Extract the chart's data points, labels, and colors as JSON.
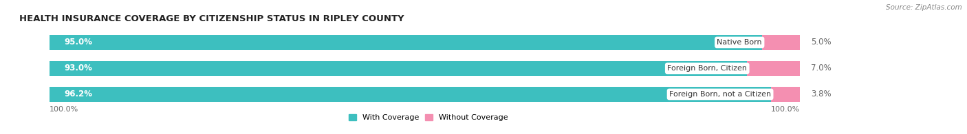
{
  "title": "HEALTH INSURANCE COVERAGE BY CITIZENSHIP STATUS IN RIPLEY COUNTY",
  "source": "Source: ZipAtlas.com",
  "categories": [
    "Native Born",
    "Foreign Born, Citizen",
    "Foreign Born, not a Citizen"
  ],
  "with_coverage": [
    95.0,
    93.0,
    96.2
  ],
  "without_coverage": [
    5.0,
    7.0,
    3.8
  ],
  "color_with": "#3dbfbf",
  "color_without": "#f48fb1",
  "bar_bg_color": "#e8e8e8",
  "label_left_100": "100.0%",
  "label_right_100": "100.0%",
  "legend_with": "With Coverage",
  "legend_without": "Without Coverage",
  "title_fontsize": 9.5,
  "source_fontsize": 7.5,
  "bar_label_fontsize": 8.5,
  "category_fontsize": 8,
  "legend_fontsize": 8,
  "axis_label_fontsize": 8
}
